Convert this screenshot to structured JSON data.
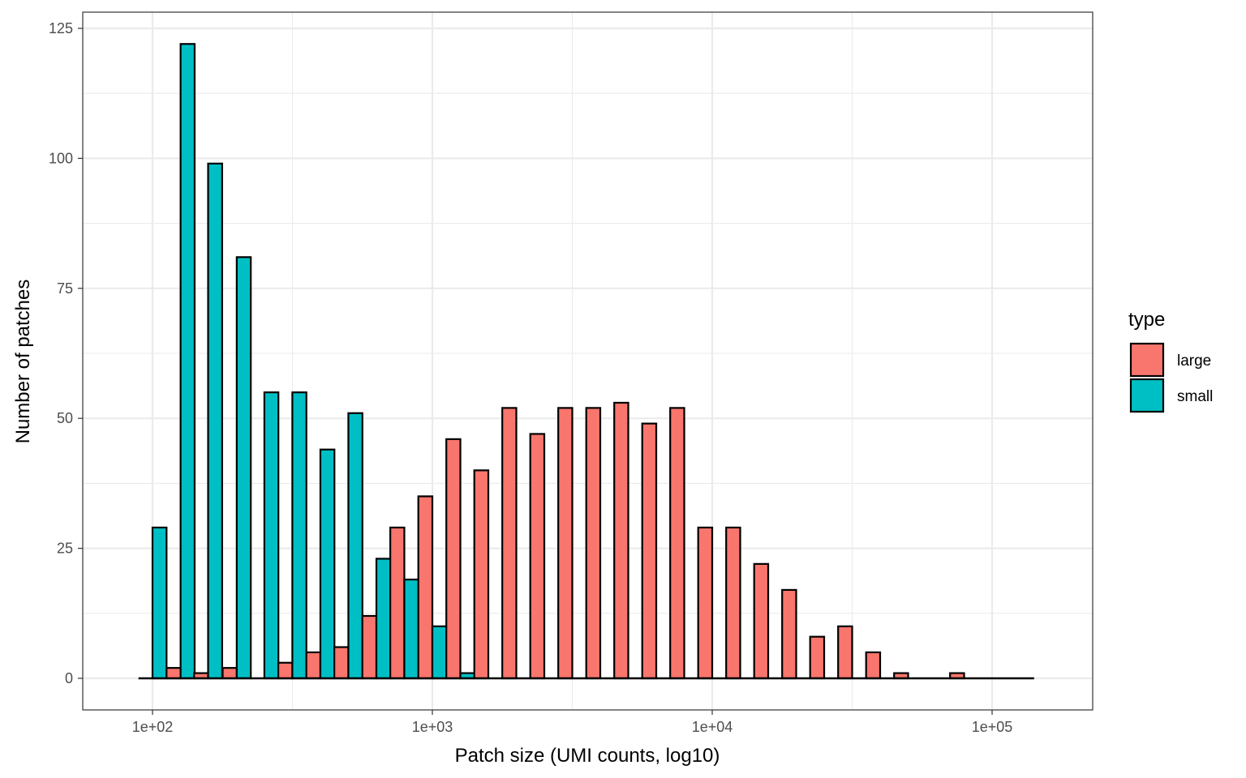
{
  "chart_data": {
    "type": "bar",
    "xlabel": "Patch size (UMI counts, log10)",
    "ylabel": "Number of patches",
    "x_scale": "log10",
    "xlim": [
      82,
      150000
    ],
    "ylim": [
      0,
      125
    ],
    "x_ticks": [
      100,
      1000,
      10000,
      100000
    ],
    "x_tick_labels": [
      "1e+02",
      "1e+03",
      "1e+04",
      "1e+05"
    ],
    "y_ticks": [
      0,
      25,
      50,
      75,
      100,
      125
    ],
    "y_tick_labels": [
      "0",
      "25",
      "50",
      "75",
      "100",
      "125"
    ],
    "grid": true,
    "legend": {
      "title": "type",
      "position": "right"
    },
    "bin_centers": [
      100,
      126,
      158,
      200,
      251,
      316,
      398,
      501,
      631,
      794,
      1000,
      1259,
      1585,
      1995,
      2512,
      3162,
      3981,
      5012,
      6310,
      7943,
      10000,
      12589,
      15849,
      19953,
      25119,
      31623,
      39811,
      50119,
      63096,
      79433,
      100000,
      125893
    ],
    "series": [
      {
        "name": "large",
        "color": "#F8766D",
        "values": [
          0,
          2,
          1,
          2,
          0,
          3,
          5,
          6,
          12,
          29,
          35,
          46,
          40,
          52,
          47,
          52,
          52,
          53,
          49,
          52,
          29,
          29,
          22,
          17,
          8,
          10,
          5,
          1,
          0,
          1,
          0,
          0
        ]
      },
      {
        "name": "small",
        "color": "#00BFC4",
        "values": [
          29,
          122,
          99,
          81,
          55,
          55,
          44,
          51,
          23,
          19,
          10,
          1,
          0,
          0,
          0,
          0,
          0,
          0,
          0,
          0,
          0,
          0,
          0,
          0,
          0,
          0,
          0,
          0,
          0,
          0,
          0,
          0
        ]
      }
    ]
  }
}
